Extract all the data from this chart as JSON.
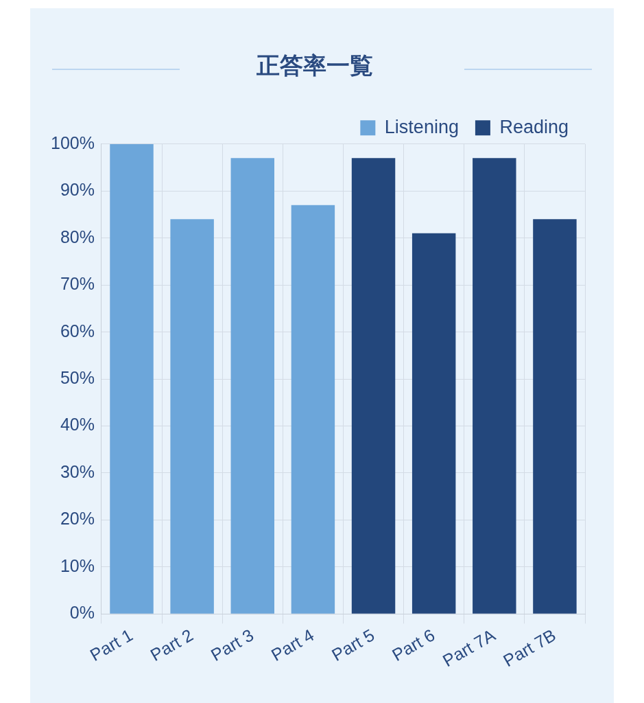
{
  "chart_data": {
    "type": "bar",
    "title": "正答率一覧",
    "categories": [
      "Part 1",
      "Part 2",
      "Part 3",
      "Part 4",
      "Part 5",
      "Part 6",
      "Part 7A",
      "Part 7B"
    ],
    "series": [
      {
        "name": "Listening",
        "color": "#6ca6da",
        "values": [
          100,
          84,
          97,
          87,
          null,
          null,
          null,
          null
        ]
      },
      {
        "name": "Reading",
        "color": "#23477c",
        "values": [
          null,
          null,
          null,
          null,
          97,
          81,
          97,
          84
        ]
      }
    ],
    "ylim": [
      0,
      100
    ],
    "yticks": [
      {
        "value": 0,
        "label": "0%"
      },
      {
        "value": 10,
        "label": "10%"
      },
      {
        "value": 20,
        "label": "20%"
      },
      {
        "value": 30,
        "label": "30%"
      },
      {
        "value": 40,
        "label": "40%"
      },
      {
        "value": 50,
        "label": "50%"
      },
      {
        "value": 60,
        "label": "60%"
      },
      {
        "value": 70,
        "label": "70%"
      },
      {
        "value": 80,
        "label": "80%"
      },
      {
        "value": 90,
        "label": "90%"
      },
      {
        "value": 100,
        "label": "100%"
      }
    ],
    "grid": true,
    "legend": "top right"
  }
}
